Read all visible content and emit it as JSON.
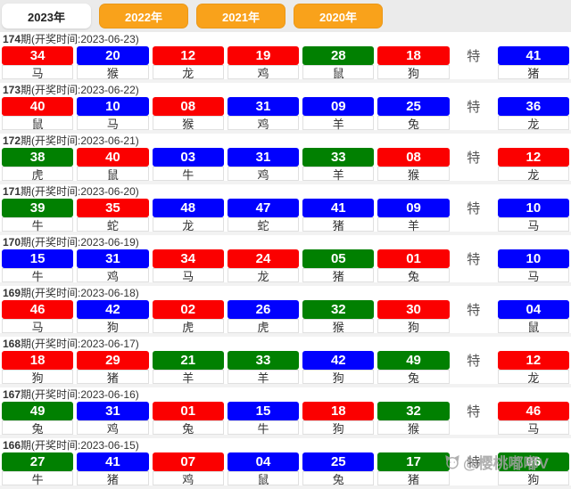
{
  "tabs": [
    {
      "key": "2023",
      "label": "2023年",
      "active": true
    },
    {
      "key": "2022",
      "label": "2022年",
      "active": false
    },
    {
      "key": "2021",
      "label": "2021年",
      "active": false
    },
    {
      "key": "2020",
      "label": "2020年",
      "active": false
    }
  ],
  "special_label": "特",
  "colors": {
    "red": "#fb0000",
    "blue": "#0101fe",
    "green": "#018001",
    "tab_orange": "#f9a21b"
  },
  "rows": [
    {
      "period": "174",
      "header_rest": "期(开奖时间:2023-06-23)",
      "balls": [
        {
          "n": "34",
          "z": "马",
          "c": "red"
        },
        {
          "n": "20",
          "z": "猴",
          "c": "blue"
        },
        {
          "n": "12",
          "z": "龙",
          "c": "red"
        },
        {
          "n": "19",
          "z": "鸡",
          "c": "red"
        },
        {
          "n": "28",
          "z": "鼠",
          "c": "green"
        },
        {
          "n": "18",
          "z": "狗",
          "c": "red"
        }
      ],
      "special": {
        "n": "41",
        "z": "猪",
        "c": "blue"
      }
    },
    {
      "period": "173",
      "header_rest": "期(开奖时间:2023-06-22)",
      "balls": [
        {
          "n": "40",
          "z": "鼠",
          "c": "red"
        },
        {
          "n": "10",
          "z": "马",
          "c": "blue"
        },
        {
          "n": "08",
          "z": "猴",
          "c": "red"
        },
        {
          "n": "31",
          "z": "鸡",
          "c": "blue"
        },
        {
          "n": "09",
          "z": "羊",
          "c": "blue"
        },
        {
          "n": "25",
          "z": "兔",
          "c": "blue"
        }
      ],
      "special": {
        "n": "36",
        "z": "龙",
        "c": "blue"
      }
    },
    {
      "period": "172",
      "header_rest": "期(开奖时间:2023-06-21)",
      "balls": [
        {
          "n": "38",
          "z": "虎",
          "c": "green"
        },
        {
          "n": "40",
          "z": "鼠",
          "c": "red"
        },
        {
          "n": "03",
          "z": "牛",
          "c": "blue"
        },
        {
          "n": "31",
          "z": "鸡",
          "c": "blue"
        },
        {
          "n": "33",
          "z": "羊",
          "c": "green"
        },
        {
          "n": "08",
          "z": "猴",
          "c": "red"
        }
      ],
      "special": {
        "n": "12",
        "z": "龙",
        "c": "red"
      }
    },
    {
      "period": "171",
      "header_rest": "期(开奖时间:2023-06-20)",
      "balls": [
        {
          "n": "39",
          "z": "牛",
          "c": "green"
        },
        {
          "n": "35",
          "z": "蛇",
          "c": "red"
        },
        {
          "n": "48",
          "z": "龙",
          "c": "blue"
        },
        {
          "n": "47",
          "z": "蛇",
          "c": "blue"
        },
        {
          "n": "41",
          "z": "猪",
          "c": "blue"
        },
        {
          "n": "09",
          "z": "羊",
          "c": "blue"
        }
      ],
      "special": {
        "n": "10",
        "z": "马",
        "c": "blue"
      }
    },
    {
      "period": "170",
      "header_rest": "期(开奖时间:2023-06-19)",
      "balls": [
        {
          "n": "15",
          "z": "牛",
          "c": "blue"
        },
        {
          "n": "31",
          "z": "鸡",
          "c": "blue"
        },
        {
          "n": "34",
          "z": "马",
          "c": "red"
        },
        {
          "n": "24",
          "z": "龙",
          "c": "red"
        },
        {
          "n": "05",
          "z": "猪",
          "c": "green"
        },
        {
          "n": "01",
          "z": "兔",
          "c": "red"
        }
      ],
      "special": {
        "n": "10",
        "z": "马",
        "c": "blue"
      }
    },
    {
      "period": "169",
      "header_rest": "期(开奖时间:2023-06-18)",
      "balls": [
        {
          "n": "46",
          "z": "马",
          "c": "red"
        },
        {
          "n": "42",
          "z": "狗",
          "c": "blue"
        },
        {
          "n": "02",
          "z": "虎",
          "c": "red"
        },
        {
          "n": "26",
          "z": "虎",
          "c": "blue"
        },
        {
          "n": "32",
          "z": "猴",
          "c": "green"
        },
        {
          "n": "30",
          "z": "狗",
          "c": "red"
        }
      ],
      "special": {
        "n": "04",
        "z": "鼠",
        "c": "blue"
      }
    },
    {
      "period": "168",
      "header_rest": "期(开奖时间:2023-06-17)",
      "balls": [
        {
          "n": "18",
          "z": "狗",
          "c": "red"
        },
        {
          "n": "29",
          "z": "猪",
          "c": "red"
        },
        {
          "n": "21",
          "z": "羊",
          "c": "green"
        },
        {
          "n": "33",
          "z": "羊",
          "c": "green"
        },
        {
          "n": "42",
          "z": "狗",
          "c": "blue"
        },
        {
          "n": "49",
          "z": "兔",
          "c": "green"
        }
      ],
      "special": {
        "n": "12",
        "z": "龙",
        "c": "red"
      }
    },
    {
      "period": "167",
      "header_rest": "期(开奖时间:2023-06-16)",
      "balls": [
        {
          "n": "49",
          "z": "兔",
          "c": "green"
        },
        {
          "n": "31",
          "z": "鸡",
          "c": "blue"
        },
        {
          "n": "01",
          "z": "兔",
          "c": "red"
        },
        {
          "n": "15",
          "z": "牛",
          "c": "blue"
        },
        {
          "n": "18",
          "z": "狗",
          "c": "red"
        },
        {
          "n": "32",
          "z": "猴",
          "c": "green"
        }
      ],
      "special": {
        "n": "46",
        "z": "马",
        "c": "red"
      }
    },
    {
      "period": "166",
      "header_rest": "期(开奖时间:2023-06-15)",
      "balls": [
        {
          "n": "27",
          "z": "牛",
          "c": "green"
        },
        {
          "n": "41",
          "z": "猪",
          "c": "blue"
        },
        {
          "n": "07",
          "z": "鸡",
          "c": "red"
        },
        {
          "n": "04",
          "z": "鼠",
          "c": "blue"
        },
        {
          "n": "25",
          "z": "兔",
          "c": "blue"
        },
        {
          "n": "17",
          "z": "猪",
          "c": "green"
        }
      ],
      "special": {
        "n": "06",
        "z": "狗",
        "c": "green"
      }
    }
  ],
  "watermark": {
    "handle": "@樱桃嘟嘟V",
    "icon": "cat-face-icon"
  }
}
